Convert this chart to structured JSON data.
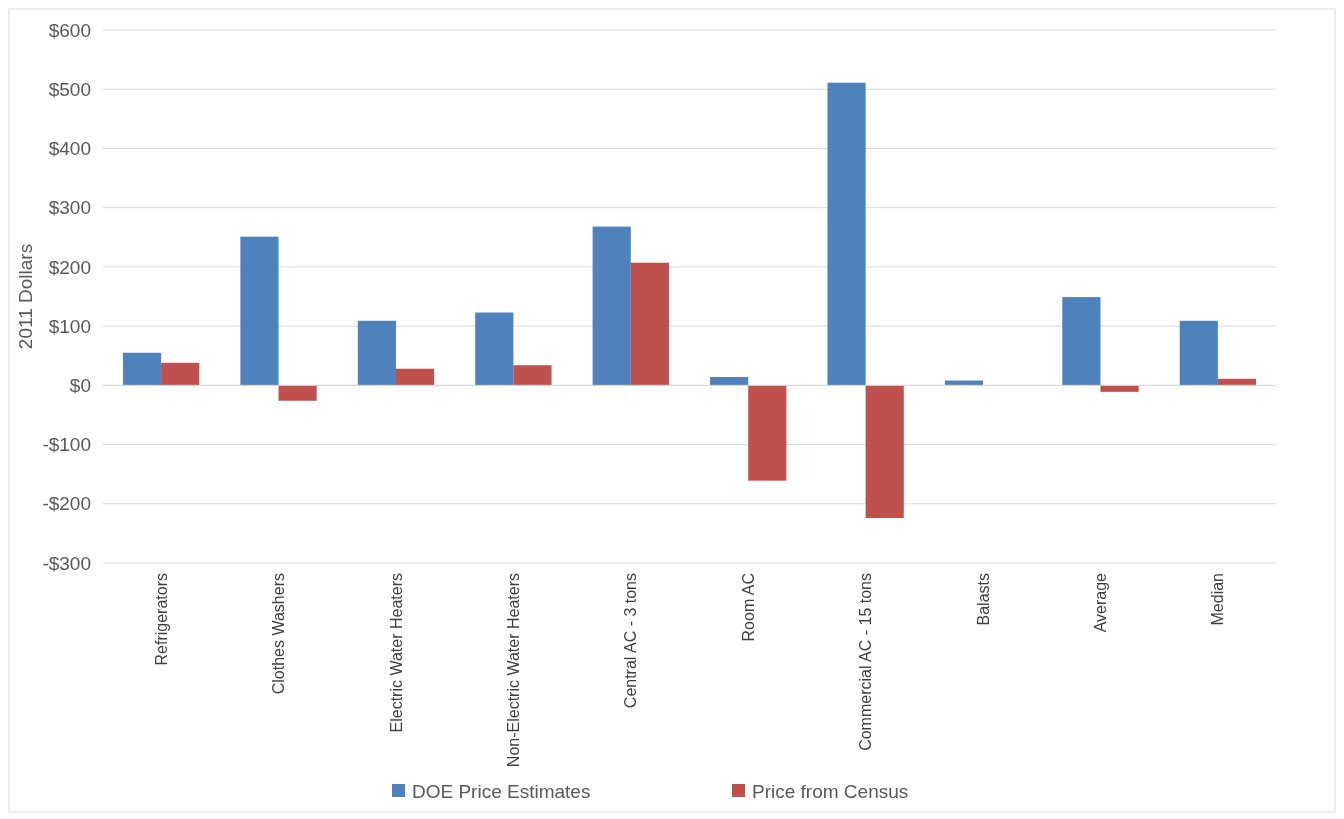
{
  "chart_data": {
    "type": "bar",
    "ylabel": "2011 Dollars",
    "categories": [
      "Refrigerators",
      "Clothes Washers",
      "Electric Water Heaters",
      "Non-Electric Water Heaters",
      "Central AC - 3 tons",
      "Room AC",
      "Commercial AC - 15 tons",
      "Balasts",
      "Average",
      "Median"
    ],
    "series": [
      {
        "name": "DOE Price Estimates",
        "color": "#4f81bd",
        "values": [
          55,
          251,
          109,
          123,
          268,
          14,
          511,
          8,
          149,
          109
        ]
      },
      {
        "name": "Price from Census",
        "color": "#c0504d",
        "values": [
          38,
          -26,
          28,
          34,
          207,
          -161,
          -224,
          null,
          -11,
          11
        ]
      }
    ],
    "ylim": [
      -300,
      600
    ],
    "yticks": [
      {
        "value": -300,
        "label": "-$300"
      },
      {
        "value": -200,
        "label": "-$200"
      },
      {
        "value": -100,
        "label": "-$100"
      },
      {
        "value": 0,
        "label": "$0"
      },
      {
        "value": 100,
        "label": "$100"
      },
      {
        "value": 200,
        "label": "$200"
      },
      {
        "value": 300,
        "label": "$300"
      },
      {
        "value": 400,
        "label": "$400"
      },
      {
        "value": 500,
        "label": "$500"
      },
      {
        "value": 600,
        "label": "$600"
      }
    ],
    "grid": "y",
    "legend": "bottom"
  }
}
